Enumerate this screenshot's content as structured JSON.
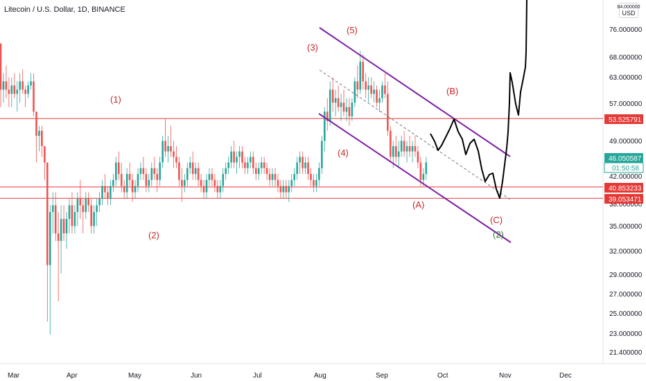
{
  "header": {
    "title": "Litecoin / U.S. Dollar, 1D, BINANCE",
    "currency": "USD",
    "currency_top": "84.000000"
  },
  "chart_data": {
    "type": "candlestick",
    "title": "Litecoin / U.S. Dollar, 1D, BINANCE",
    "scale": "log",
    "ylim": [
      20.6,
      85.5
    ],
    "y_ticks": [
      "76.000000",
      "68.000000",
      "63.000000",
      "57.000000",
      "49.000000",
      "42.000000",
      "38.000000",
      "35.000000",
      "32.000000",
      "29.000000",
      "27.000000",
      "25.000000",
      "23.000000",
      "21.400000"
    ],
    "x_ticks": [
      "Mar",
      "Apr",
      "May",
      "Jun",
      "Jul",
      "Aug",
      "Sep",
      "Oct",
      "Nov",
      "Dec"
    ],
    "grid": false,
    "price_tags": [
      {
        "value": "53.525791",
        "color": "#e53935"
      },
      {
        "value": "46.050587",
        "color": "#26a69a"
      },
      {
        "value": "01:50:58",
        "color": "#26a69a"
      },
      {
        "value": "40.853233",
        "color": "#e53935"
      },
      {
        "value": "39.053471",
        "color": "#e53935"
      }
    ],
    "horizontal_levels": [
      53.525791,
      40.853233,
      39.053471
    ],
    "wave_labels": [
      {
        "text": "(1)",
        "color": "#c62828"
      },
      {
        "text": "(2)",
        "color": "#c62828"
      },
      {
        "text": "(3)",
        "color": "#c62828"
      },
      {
        "text": "(4)",
        "color": "#c62828"
      },
      {
        "text": "(5)",
        "color": "#c62828"
      },
      {
        "text": "(A)",
        "color": "#c62828"
      },
      {
        "text": "(B)",
        "color": "#c62828"
      },
      {
        "text": "(C)",
        "color": "#c62828"
      },
      {
        "text": "(2)",
        "color": "#2e7d32"
      }
    ],
    "colors": {
      "up": "#26a69a",
      "down": "#ef5350",
      "channel": "#7b1fa2",
      "level": "#e53935",
      "projection": "#000000"
    },
    "candles_ohlc": [
      [
        72.0,
        72.0,
        56.0,
        60.0
      ],
      [
        60.0,
        64.0,
        57.0,
        62.0
      ],
      [
        62.0,
        66.0,
        58.0,
        60.0
      ],
      [
        60.0,
        63.0,
        56.0,
        59.0
      ],
      [
        59.0,
        63.0,
        56.0,
        61.0
      ],
      [
        61.0,
        64.0,
        58.0,
        59.0
      ],
      [
        59.0,
        62.0,
        55.0,
        60.0
      ],
      [
        60.0,
        64.0,
        57.0,
        62.0
      ],
      [
        62.0,
        65.0,
        59.0,
        60.0
      ],
      [
        60.0,
        61.0,
        56.0,
        59.0
      ],
      [
        59.0,
        62.0,
        58.0,
        61.0
      ],
      [
        61.0,
        64.0,
        60.0,
        62.0
      ],
      [
        62.0,
        64.0,
        54.0,
        55.0
      ],
      [
        55.0,
        55.0,
        45.0,
        50.0
      ],
      [
        50.0,
        52.0,
        47.0,
        51.0
      ],
      [
        51.0,
        52.0,
        46.0,
        48.0
      ],
      [
        48.0,
        48.0,
        42.0,
        45.0
      ],
      [
        45.0,
        45.0,
        24.0,
        30.0
      ],
      [
        30.0,
        38.0,
        22.8,
        37.0
      ],
      [
        37.0,
        40.0,
        34.0,
        38.0
      ],
      [
        38.0,
        40.0,
        33.0,
        34.0
      ],
      [
        34.0,
        37.0,
        26.0,
        33.0
      ],
      [
        33.0,
        38.0,
        29.0,
        36.0
      ],
      [
        36.0,
        38.0,
        33.0,
        34.0
      ],
      [
        34.0,
        37.0,
        32.0,
        36.0
      ],
      [
        36.0,
        39.0,
        34.0,
        38.0
      ],
      [
        38.0,
        40.0,
        34.0,
        35.0
      ],
      [
        35.0,
        38.0,
        34.0,
        37.0
      ],
      [
        37.0,
        40.0,
        35.0,
        39.0
      ],
      [
        39.0,
        42.0,
        36.0,
        38.0
      ],
      [
        38.0,
        39.0,
        34.0,
        37.0
      ],
      [
        37.0,
        40.0,
        36.0,
        39.0
      ],
      [
        39.0,
        40.0,
        37.0,
        38.0
      ],
      [
        38.0,
        39.0,
        34.0,
        35.0
      ],
      [
        35.0,
        38.0,
        34.0,
        37.0
      ],
      [
        37.0,
        39.0,
        35.0,
        38.0
      ],
      [
        38.0,
        40.0,
        37.0,
        39.0
      ],
      [
        39.0,
        42.0,
        38.0,
        41.0
      ],
      [
        41.0,
        43.0,
        39.0,
        40.0
      ],
      [
        40.0,
        41.0,
        38.0,
        39.0
      ],
      [
        39.0,
        42.0,
        38.0,
        41.0
      ],
      [
        41.0,
        43.0,
        40.0,
        42.0
      ],
      [
        42.0,
        46.0,
        41.0,
        45.0
      ],
      [
        45.0,
        47.0,
        42.0,
        43.0
      ],
      [
        43.0,
        45.0,
        40.0,
        41.0
      ],
      [
        41.0,
        42.0,
        39.0,
        40.0
      ],
      [
        40.0,
        44.0,
        39.0,
        43.0
      ],
      [
        43.0,
        45.0,
        41.0,
        42.0
      ],
      [
        42.0,
        43.0,
        38.5,
        40.0
      ],
      [
        40.0,
        42.0,
        39.0,
        41.0
      ],
      [
        41.0,
        44.0,
        40.0,
        43.0
      ],
      [
        43.0,
        45.0,
        42.0,
        44.0
      ],
      [
        44.0,
        46.0,
        42.0,
        43.0
      ],
      [
        43.0,
        44.0,
        40.0,
        41.0
      ],
      [
        41.0,
        43.0,
        40.0,
        42.0
      ],
      [
        42.0,
        45.0,
        41.0,
        44.0
      ],
      [
        44.0,
        46.0,
        42.0,
        43.0
      ],
      [
        43.0,
        44.0,
        40.0,
        42.0
      ],
      [
        42.0,
        46.0,
        41.0,
        45.0
      ],
      [
        45.0,
        50.0,
        44.0,
        49.0
      ],
      [
        49.0,
        53.5,
        46.0,
        47.0
      ],
      [
        47.0,
        50.0,
        45.0,
        48.0
      ],
      [
        48.0,
        52.0,
        46.0,
        47.0
      ],
      [
        47.0,
        49.0,
        44.0,
        46.0
      ],
      [
        46.0,
        48.0,
        44.0,
        45.0
      ],
      [
        45.0,
        46.0,
        41.0,
        42.0
      ],
      [
        42.0,
        44.0,
        38.5,
        41.0
      ],
      [
        41.0,
        43.0,
        40.0,
        42.0
      ],
      [
        42.0,
        45.0,
        41.0,
        44.0
      ],
      [
        44.0,
        46.0,
        43.0,
        45.0
      ],
      [
        45.0,
        47.0,
        42.0,
        43.0
      ],
      [
        43.0,
        45.0,
        42.0,
        44.0
      ],
      [
        44.0,
        45.0,
        41.0,
        42.0
      ],
      [
        42.0,
        43.0,
        40.0,
        41.0
      ],
      [
        41.0,
        42.0,
        39.0,
        40.0
      ],
      [
        40.0,
        43.0,
        39.0,
        42.0
      ],
      [
        42.0,
        44.0,
        41.0,
        43.0
      ],
      [
        43.0,
        44.0,
        41.0,
        42.0
      ],
      [
        42.0,
        43.0,
        40.0,
        41.0
      ],
      [
        41.0,
        42.0,
        39.0,
        40.0
      ],
      [
        40.0,
        42.0,
        39.0,
        41.0
      ],
      [
        41.0,
        44.0,
        40.0,
        43.0
      ],
      [
        43.0,
        45.0,
        42.0,
        44.0
      ],
      [
        44.0,
        46.0,
        43.0,
        45.0
      ],
      [
        45.0,
        48.0,
        44.0,
        47.0
      ],
      [
        47.0,
        49.0,
        44.0,
        45.0
      ],
      [
        45.0,
        47.0,
        43.0,
        46.0
      ],
      [
        46.0,
        48.0,
        44.0,
        47.0
      ],
      [
        47.0,
        48.0,
        44.0,
        45.0
      ],
      [
        45.0,
        46.0,
        43.0,
        44.0
      ],
      [
        44.0,
        46.0,
        43.0,
        45.0
      ],
      [
        45.0,
        47.0,
        44.0,
        46.0
      ],
      [
        46.0,
        47.0,
        43.0,
        44.0
      ],
      [
        44.0,
        45.0,
        42.0,
        43.0
      ],
      [
        43.0,
        45.0,
        42.0,
        44.0
      ],
      [
        44.0,
        46.0,
        43.0,
        45.0
      ],
      [
        45.0,
        46.0,
        43.0,
        44.0
      ],
      [
        44.0,
        45.0,
        42.0,
        43.0
      ],
      [
        43.0,
        44.0,
        41.0,
        42.0
      ],
      [
        42.0,
        44.0,
        41.0,
        43.0
      ],
      [
        43.0,
        44.0,
        41.0,
        42.0
      ],
      [
        42.0,
        43.0,
        40.0,
        41.0
      ],
      [
        41.0,
        42.0,
        39.0,
        40.0
      ],
      [
        40.0,
        42.0,
        39.0,
        41.0
      ],
      [
        41.0,
        42.0,
        39.0,
        40.0
      ],
      [
        40.0,
        42.0,
        38.5,
        41.0
      ],
      [
        41.0,
        43.0,
        40.0,
        42.0
      ],
      [
        42.0,
        44.0,
        41.0,
        43.0
      ],
      [
        43.0,
        46.0,
        42.0,
        45.0
      ],
      [
        45.0,
        47.0,
        43.0,
        46.0
      ],
      [
        46.0,
        47.0,
        43.0,
        44.0
      ],
      [
        44.0,
        46.0,
        43.0,
        45.0
      ],
      [
        45.0,
        46.0,
        42.0,
        43.0
      ],
      [
        43.0,
        44.0,
        41.0,
        42.0
      ],
      [
        42.0,
        43.0,
        40.0,
        41.0
      ],
      [
        41.0,
        43.0,
        40.0,
        42.0
      ],
      [
        42.0,
        45.0,
        41.0,
        44.0
      ],
      [
        44.0,
        50.0,
        43.0,
        49.0
      ],
      [
        49.0,
        56.0,
        47.0,
        55.0
      ],
      [
        55.0,
        58.0,
        51.0,
        53.0
      ],
      [
        53.0,
        62.0,
        52.0,
        60.0
      ],
      [
        60.0,
        63.0,
        55.0,
        57.0
      ],
      [
        57.0,
        60.0,
        54.0,
        58.0
      ],
      [
        58.0,
        61.0,
        55.0,
        56.0
      ],
      [
        56.0,
        59.0,
        53.0,
        57.0
      ],
      [
        57.0,
        60.0,
        54.0,
        55.0
      ],
      [
        55.0,
        58.0,
        53.0,
        56.0
      ],
      [
        56.0,
        58.0,
        52.0,
        54.0
      ],
      [
        54.0,
        58.0,
        53.0,
        57.0
      ],
      [
        57.0,
        63.0,
        56.0,
        62.0
      ],
      [
        62.0,
        66.0,
        58.0,
        60.0
      ],
      [
        60.0,
        70.0,
        59.0,
        67.0
      ],
      [
        67.0,
        69.0,
        60.0,
        62.0
      ],
      [
        62.0,
        64.0,
        58.0,
        60.0
      ],
      [
        60.0,
        63.0,
        57.0,
        61.0
      ],
      [
        61.0,
        63.0,
        58.0,
        59.0
      ],
      [
        59.0,
        62.0,
        57.0,
        60.0
      ],
      [
        60.0,
        61.0,
        56.0,
        57.0
      ],
      [
        57.0,
        60.0,
        55.0,
        58.0
      ],
      [
        58.0,
        62.0,
        57.0,
        61.0
      ],
      [
        61.0,
        64.0,
        58.0,
        59.0
      ],
      [
        59.0,
        62.0,
        50.0,
        51.0
      ],
      [
        51.0,
        52.0,
        45.0,
        46.0
      ],
      [
        46.0,
        49.0,
        44.0,
        48.0
      ],
      [
        48.0,
        50.0,
        45.0,
        46.0
      ],
      [
        46.0,
        49.0,
        44.0,
        47.0
      ],
      [
        47.0,
        50.0,
        46.0,
        49.0
      ],
      [
        49.0,
        51.0,
        46.0,
        47.0
      ],
      [
        47.0,
        49.0,
        45.0,
        48.0
      ],
      [
        48.0,
        50.0,
        46.0,
        47.0
      ],
      [
        47.0,
        49.0,
        45.0,
        48.0
      ],
      [
        48.0,
        50.0,
        46.0,
        47.0
      ],
      [
        47.0,
        48.0,
        44.0,
        45.0
      ],
      [
        45.0,
        46.0,
        41.0,
        42.0
      ],
      [
        42.0,
        44.0,
        41.0,
        43.0
      ],
      [
        43.0,
        46.0,
        42.0,
        45.0
      ]
    ],
    "projection_path": [
      [
        56,
        47.5
      ],
      [
        58,
        50
      ],
      [
        60,
        47
      ],
      [
        61,
        49
      ],
      [
        62,
        53.5
      ],
      [
        63,
        51
      ],
      [
        64,
        47
      ],
      [
        65,
        48
      ],
      [
        66,
        49.5
      ],
      [
        67,
        46
      ],
      [
        68,
        42
      ],
      [
        69,
        43
      ],
      [
        70,
        41.5
      ],
      [
        71,
        39
      ],
      [
        72,
        46
      ],
      [
        73,
        56
      ],
      [
        74,
        66
      ],
      [
        75,
        62
      ],
      [
        76,
        56
      ],
      [
        77,
        61
      ],
      [
        78,
        66
      ],
      [
        79,
        100
      ]
    ]
  }
}
